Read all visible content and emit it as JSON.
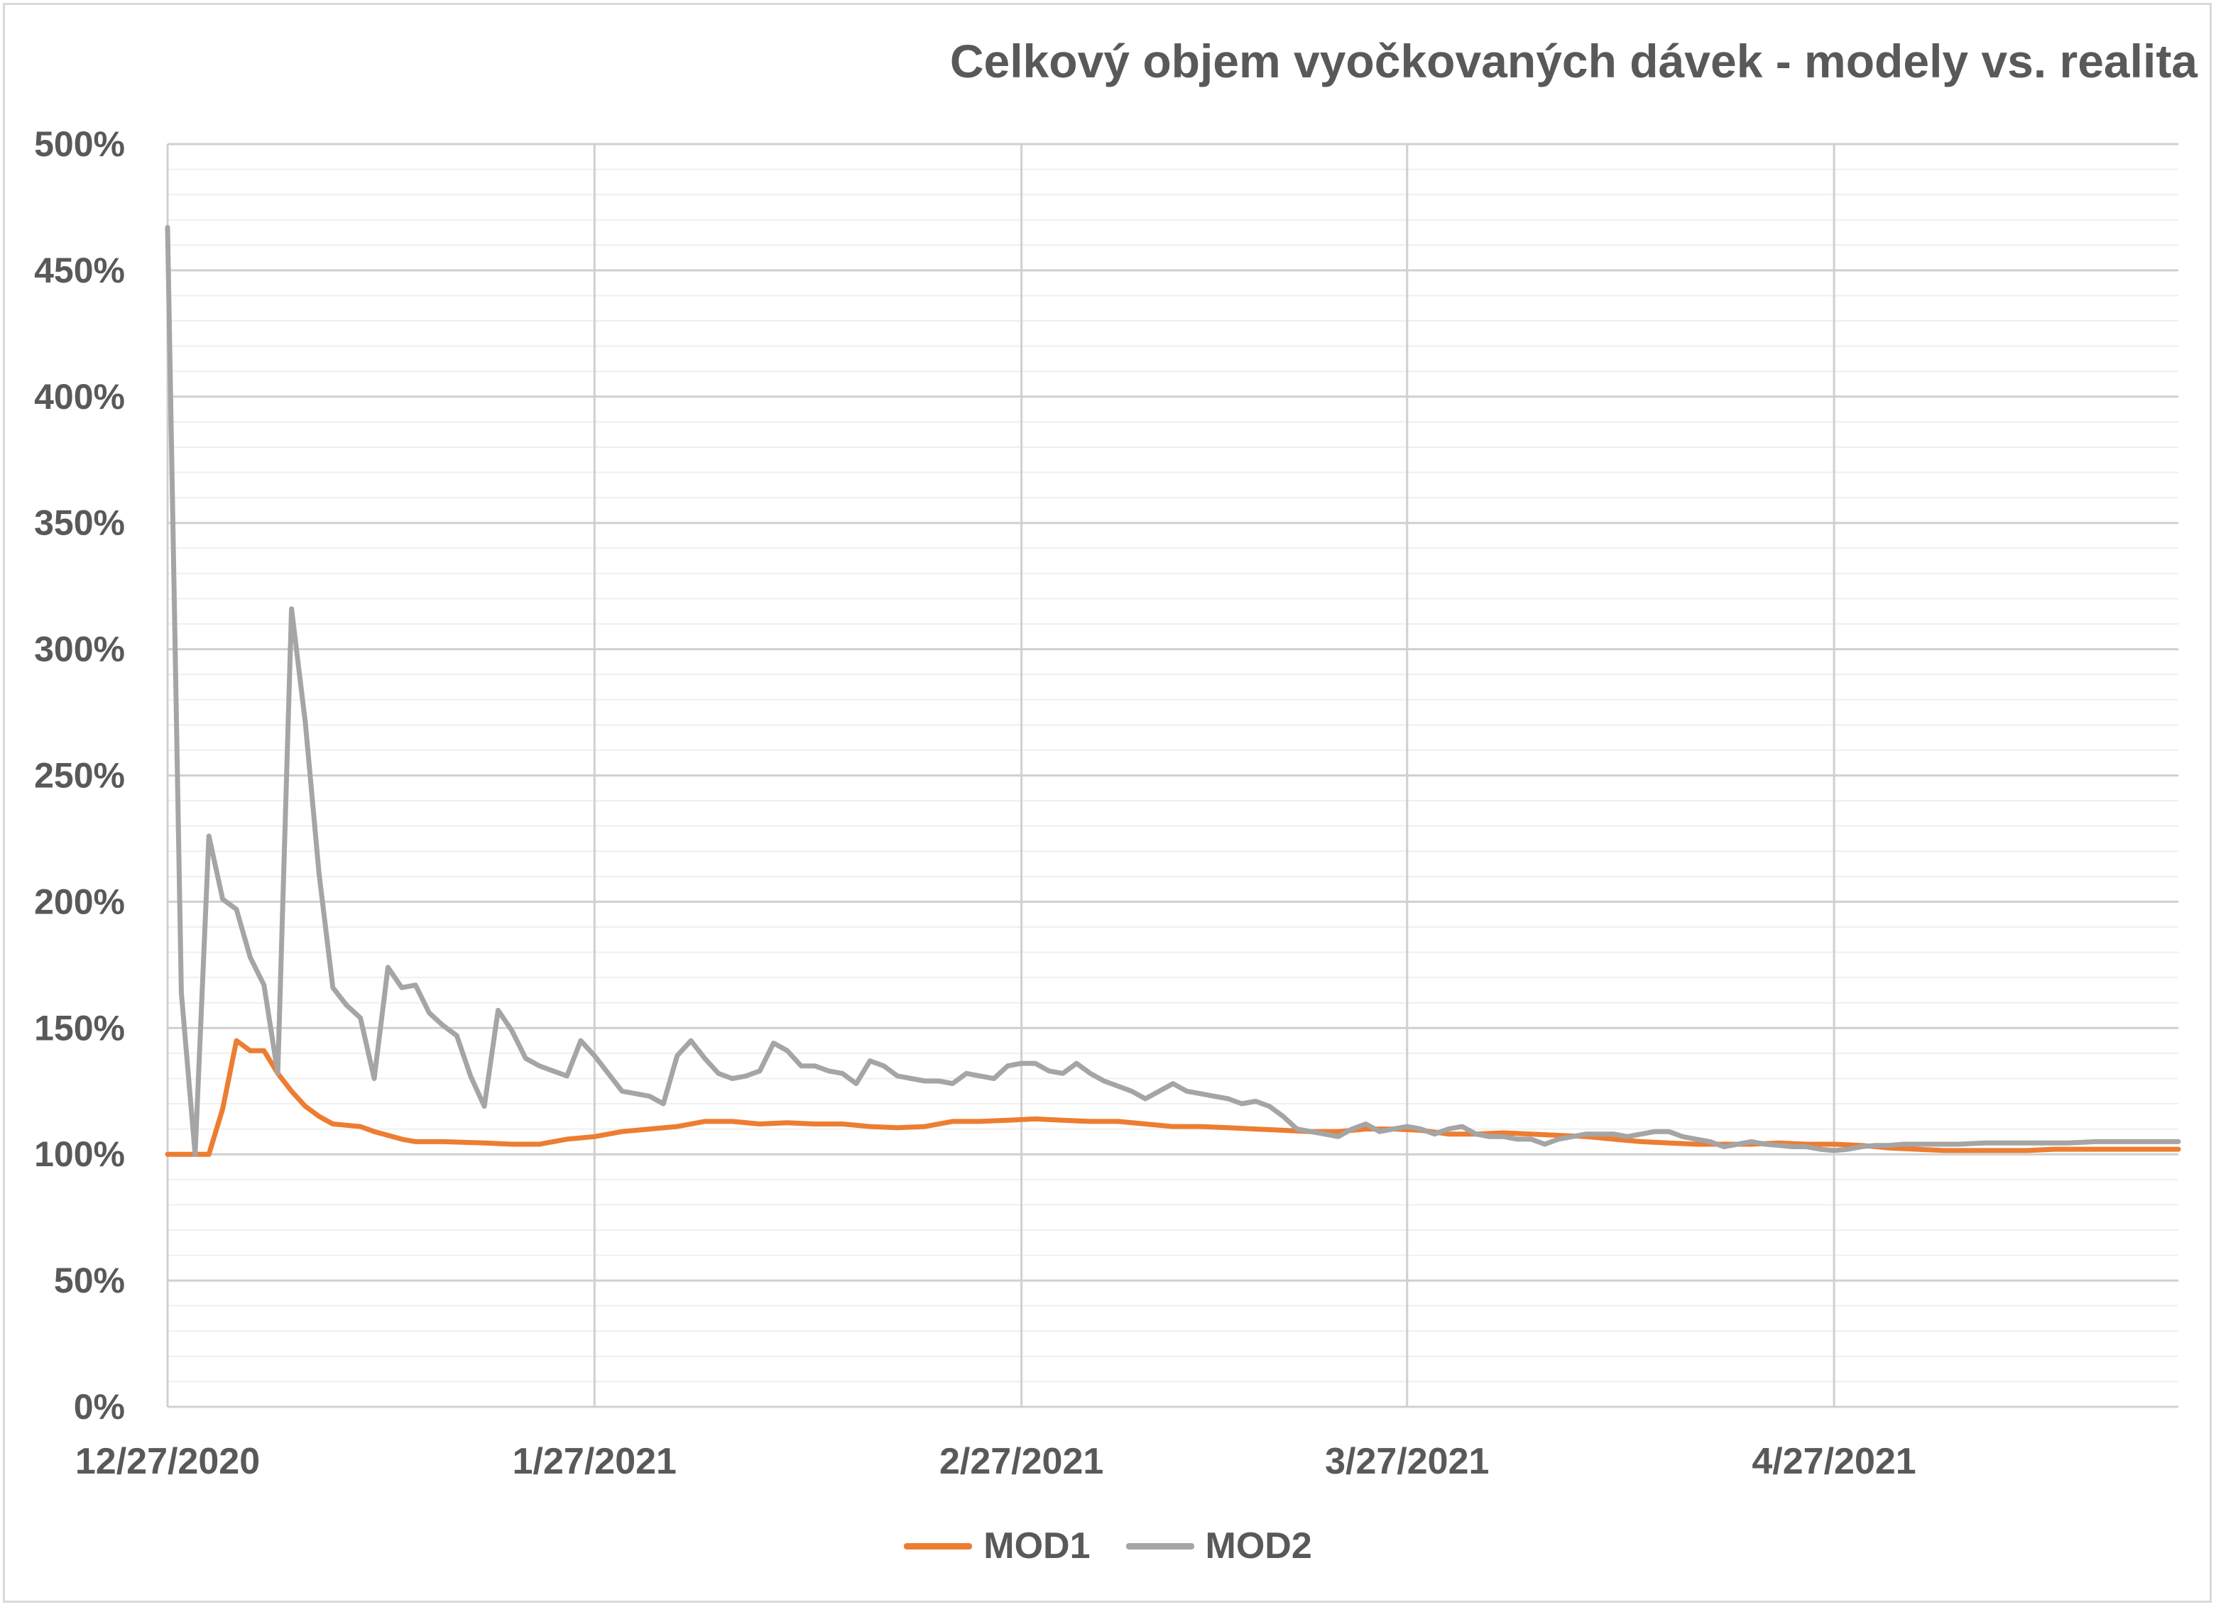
{
  "title": "Celkový objem vyočkovaných dávek - modely vs. realita",
  "legend": {
    "mod1": "MOD1",
    "mod2": "MOD2"
  },
  "colors": {
    "mod1": "#ED7D31",
    "mod2": "#A5A5A5",
    "grid_major": "#d0d0d0",
    "grid_minor": "#efefef",
    "text": "#595959"
  },
  "chart_data": {
    "type": "line",
    "title": "Celkový objem vyočkovaných dávek - modely vs. realita",
    "xlabel": "",
    "ylabel": "",
    "x_start": "12/27/2020",
    "x_end": "5/22/2021",
    "x_ticks": [
      "12/27/2020",
      "1/27/2021",
      "2/27/2021",
      "3/27/2021",
      "4/27/2021"
    ],
    "y_ticks": [
      "0%",
      "50%",
      "100%",
      "150%",
      "200%",
      "250%",
      "300%",
      "350%",
      "400%",
      "450%",
      "500%"
    ],
    "ylim": [
      0,
      500
    ],
    "y_unit": "%",
    "grid": true,
    "legend_position": "bottom",
    "series": [
      {
        "name": "MOD1",
        "color": "#ED7D31",
        "points": [
          [
            "12/27/2020",
            100
          ],
          [
            "12/28/2020",
            100
          ],
          [
            "12/29/2020",
            100
          ],
          [
            "12/30/2020",
            100
          ],
          [
            "12/31/2020",
            118
          ],
          [
            "1/1/2021",
            145
          ],
          [
            "1/2/2021",
            141
          ],
          [
            "1/3/2021",
            141
          ],
          [
            "1/4/2021",
            132
          ],
          [
            "1/5/2021",
            125
          ],
          [
            "1/6/2021",
            119
          ],
          [
            "1/7/2021",
            115
          ],
          [
            "1/8/2021",
            112
          ],
          [
            "1/9/2021",
            111.5
          ],
          [
            "1/10/2021",
            111
          ],
          [
            "1/11/2021",
            109
          ],
          [
            "1/12/2021",
            107.5
          ],
          [
            "1/13/2021",
            106
          ],
          [
            "1/14/2021",
            105
          ],
          [
            "1/16/2021",
            105
          ],
          [
            "1/19/2021",
            104.5
          ],
          [
            "1/21/2021",
            104
          ],
          [
            "1/23/2021",
            104
          ],
          [
            "1/25/2021",
            106
          ],
          [
            "1/27/2021",
            107
          ],
          [
            "1/29/2021",
            109
          ],
          [
            "1/31/2021",
            110
          ],
          [
            "2/2/2021",
            111
          ],
          [
            "2/4/2021",
            113
          ],
          [
            "2/6/2021",
            113
          ],
          [
            "2/8/2021",
            112
          ],
          [
            "2/10/2021",
            112.5
          ],
          [
            "2/12/2021",
            112
          ],
          [
            "2/14/2021",
            112
          ],
          [
            "2/16/2021",
            111
          ],
          [
            "2/18/2021",
            110.5
          ],
          [
            "2/20/2021",
            111
          ],
          [
            "2/22/2021",
            113
          ],
          [
            "2/24/2021",
            113
          ],
          [
            "2/26/2021",
            113.5
          ],
          [
            "2/28/2021",
            114
          ],
          [
            "3/2/2021",
            113.5
          ],
          [
            "3/4/2021",
            113
          ],
          [
            "3/6/2021",
            113
          ],
          [
            "3/8/2021",
            112
          ],
          [
            "3/10/2021",
            111
          ],
          [
            "3/12/2021",
            111
          ],
          [
            "3/14/2021",
            110.5
          ],
          [
            "3/16/2021",
            110
          ],
          [
            "3/18/2021",
            109.5
          ],
          [
            "3/20/2021",
            109
          ],
          [
            "3/22/2021",
            109
          ],
          [
            "3/24/2021",
            110
          ],
          [
            "3/26/2021",
            110
          ],
          [
            "3/28/2021",
            109.5
          ],
          [
            "3/30/2021",
            108
          ],
          [
            "4/1/2021",
            108
          ],
          [
            "4/3/2021",
            108.5
          ],
          [
            "4/5/2021",
            108
          ],
          [
            "4/7/2021",
            107.5
          ],
          [
            "4/9/2021",
            107
          ],
          [
            "4/11/2021",
            106
          ],
          [
            "4/13/2021",
            105
          ],
          [
            "4/15/2021",
            104.5
          ],
          [
            "4/17/2021",
            104
          ],
          [
            "4/19/2021",
            104
          ],
          [
            "4/21/2021",
            104
          ],
          [
            "4/23/2021",
            104.5
          ],
          [
            "4/25/2021",
            104
          ],
          [
            "4/27/2021",
            104
          ],
          [
            "4/29/2021",
            103.5
          ],
          [
            "5/1/2021",
            102.5
          ],
          [
            "5/3/2021",
            102
          ],
          [
            "5/5/2021",
            101.5
          ],
          [
            "5/7/2021",
            101.5
          ],
          [
            "5/9/2021",
            101.5
          ],
          [
            "5/11/2021",
            101.5
          ],
          [
            "5/13/2021",
            102
          ],
          [
            "5/16/2021",
            102
          ],
          [
            "5/19/2021",
            102
          ],
          [
            "5/22/2021",
            102
          ]
        ]
      },
      {
        "name": "MOD2",
        "color": "#A5A5A5",
        "points": [
          [
            "12/27/2020",
            467
          ],
          [
            "12/28/2020",
            164
          ],
          [
            "12/29/2020",
            100
          ],
          [
            "12/30/2020",
            226
          ],
          [
            "12/31/2020",
            201
          ],
          [
            "1/1/2021",
            197
          ],
          [
            "1/2/2021",
            178
          ],
          [
            "1/3/2021",
            167
          ],
          [
            "1/4/2021",
            132
          ],
          [
            "1/5/2021",
            316
          ],
          [
            "1/6/2021",
            271
          ],
          [
            "1/7/2021",
            211
          ],
          [
            "1/8/2021",
            166
          ],
          [
            "1/9/2021",
            159
          ],
          [
            "1/10/2021",
            154
          ],
          [
            "1/11/2021",
            130
          ],
          [
            "1/12/2021",
            174
          ],
          [
            "1/13/2021",
            166
          ],
          [
            "1/14/2021",
            167
          ],
          [
            "1/15/2021",
            156
          ],
          [
            "1/16/2021",
            151
          ],
          [
            "1/17/2021",
            147
          ],
          [
            "1/18/2021",
            131
          ],
          [
            "1/19/2021",
            119
          ],
          [
            "1/20/2021",
            157
          ],
          [
            "1/21/2021",
            149
          ],
          [
            "1/22/2021",
            138
          ],
          [
            "1/23/2021",
            135
          ],
          [
            "1/24/2021",
            133
          ],
          [
            "1/25/2021",
            131
          ],
          [
            "1/26/2021",
            145
          ],
          [
            "1/27/2021",
            139
          ],
          [
            "1/28/2021",
            132
          ],
          [
            "1/29/2021",
            125
          ],
          [
            "1/30/2021",
            124
          ],
          [
            "1/31/2021",
            123
          ],
          [
            "2/1/2021",
            120
          ],
          [
            "2/2/2021",
            139
          ],
          [
            "2/3/2021",
            145
          ],
          [
            "2/4/2021",
            138
          ],
          [
            "2/5/2021",
            132
          ],
          [
            "2/6/2021",
            130
          ],
          [
            "2/7/2021",
            131
          ],
          [
            "2/8/2021",
            133
          ],
          [
            "2/9/2021",
            144
          ],
          [
            "2/10/2021",
            141
          ],
          [
            "2/11/2021",
            135
          ],
          [
            "2/12/2021",
            135
          ],
          [
            "2/13/2021",
            133
          ],
          [
            "2/14/2021",
            132
          ],
          [
            "2/15/2021",
            128
          ],
          [
            "2/16/2021",
            137
          ],
          [
            "2/17/2021",
            135
          ],
          [
            "2/18/2021",
            131
          ],
          [
            "2/19/2021",
            130
          ],
          [
            "2/20/2021",
            129
          ],
          [
            "2/21/2021",
            129
          ],
          [
            "2/22/2021",
            128
          ],
          [
            "2/23/2021",
            132
          ],
          [
            "2/24/2021",
            131
          ],
          [
            "2/25/2021",
            130
          ],
          [
            "2/26/2021",
            135
          ],
          [
            "2/27/2021",
            136
          ],
          [
            "2/28/2021",
            136
          ],
          [
            "3/1/2021",
            133
          ],
          [
            "3/2/2021",
            132
          ],
          [
            "3/3/2021",
            136
          ],
          [
            "3/4/2021",
            132
          ],
          [
            "3/5/2021",
            129
          ],
          [
            "3/6/2021",
            127
          ],
          [
            "3/7/2021",
            125
          ],
          [
            "3/8/2021",
            122
          ],
          [
            "3/9/2021",
            125
          ],
          [
            "3/10/2021",
            128
          ],
          [
            "3/11/2021",
            125
          ],
          [
            "3/12/2021",
            124
          ],
          [
            "3/13/2021",
            123
          ],
          [
            "3/14/2021",
            122
          ],
          [
            "3/15/2021",
            120
          ],
          [
            "3/16/2021",
            121
          ],
          [
            "3/17/2021",
            119
          ],
          [
            "3/18/2021",
            115
          ],
          [
            "3/19/2021",
            110
          ],
          [
            "3/20/2021",
            109
          ],
          [
            "3/21/2021",
            108
          ],
          [
            "3/22/2021",
            107
          ],
          [
            "3/23/2021",
            110
          ],
          [
            "3/24/2021",
            112
          ],
          [
            "3/25/2021",
            109
          ],
          [
            "3/26/2021",
            110
          ],
          [
            "3/27/2021",
            111
          ],
          [
            "3/28/2021",
            110
          ],
          [
            "3/29/2021",
            108
          ],
          [
            "3/30/2021",
            110
          ],
          [
            "3/31/2021",
            111
          ],
          [
            "4/1/2021",
            108
          ],
          [
            "4/2/2021",
            107
          ],
          [
            "4/3/2021",
            107
          ],
          [
            "4/4/2021",
            106
          ],
          [
            "4/5/2021",
            106
          ],
          [
            "4/6/2021",
            104
          ],
          [
            "4/7/2021",
            106
          ],
          [
            "4/8/2021",
            107
          ],
          [
            "4/9/2021",
            108
          ],
          [
            "4/10/2021",
            108
          ],
          [
            "4/11/2021",
            108
          ],
          [
            "4/12/2021",
            107
          ],
          [
            "4/13/2021",
            108
          ],
          [
            "4/14/2021",
            109
          ],
          [
            "4/15/2021",
            109
          ],
          [
            "4/16/2021",
            107
          ],
          [
            "4/17/2021",
            106
          ],
          [
            "4/18/2021",
            105
          ],
          [
            "4/19/2021",
            103
          ],
          [
            "4/20/2021",
            104
          ],
          [
            "4/21/2021",
            105
          ],
          [
            "4/22/2021",
            104
          ],
          [
            "4/23/2021",
            103.5
          ],
          [
            "4/24/2021",
            103
          ],
          [
            "4/25/2021",
            103
          ],
          [
            "4/26/2021",
            102
          ],
          [
            "4/27/2021",
            101.5
          ],
          [
            "4/28/2021",
            102
          ],
          [
            "4/29/2021",
            103
          ],
          [
            "4/30/2021",
            103.5
          ],
          [
            "5/1/2021",
            103.5
          ],
          [
            "5/2/2021",
            104
          ],
          [
            "5/4/2021",
            104
          ],
          [
            "5/6/2021",
            104
          ],
          [
            "5/8/2021",
            104.5
          ],
          [
            "5/10/2021",
            104.5
          ],
          [
            "5/12/2021",
            104.5
          ],
          [
            "5/14/2021",
            104.5
          ],
          [
            "5/16/2021",
            105
          ],
          [
            "5/18/2021",
            105
          ],
          [
            "5/20/2021",
            105
          ],
          [
            "5/22/2021",
            105
          ]
        ]
      }
    ]
  }
}
